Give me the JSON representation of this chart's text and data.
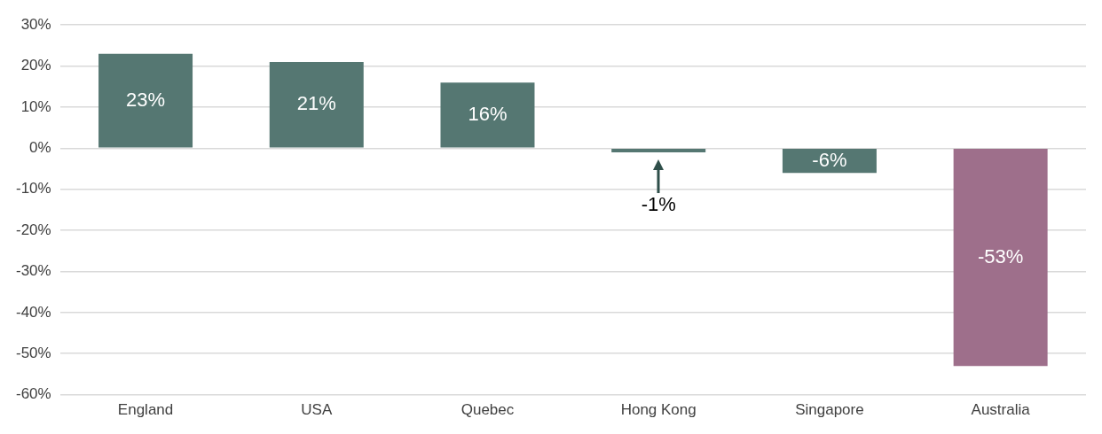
{
  "chart_data": {
    "type": "bar",
    "categories": [
      "England",
      "USA",
      "Quebec",
      "Hong Kong",
      "Singapore",
      "Australia"
    ],
    "values": [
      23,
      21,
      16,
      -1,
      -6,
      -53
    ],
    "colors": [
      "#557772",
      "#557772",
      "#557772",
      "#557772",
      "#557772",
      "#9e6f8b"
    ],
    "value_labels": [
      "23%",
      "21%",
      "16%",
      "-1%",
      "-6%",
      "-53%"
    ],
    "ylim": [
      -60,
      30
    ],
    "yticks": [
      {
        "value": -60,
        "label": "-60%"
      },
      {
        "value": -50,
        "label": "-50%"
      },
      {
        "value": -40,
        "label": "-40%"
      },
      {
        "value": -30,
        "label": "-30%"
      },
      {
        "value": -20,
        "label": "-20%"
      },
      {
        "value": -10,
        "label": "-10%"
      },
      {
        "value": 0,
        "label": "0%"
      },
      {
        "value": 10,
        "label": "10%"
      },
      {
        "value": 20,
        "label": "20%"
      },
      {
        "value": 30,
        "label": "30%"
      }
    ],
    "grid": "y",
    "legend": false
  }
}
